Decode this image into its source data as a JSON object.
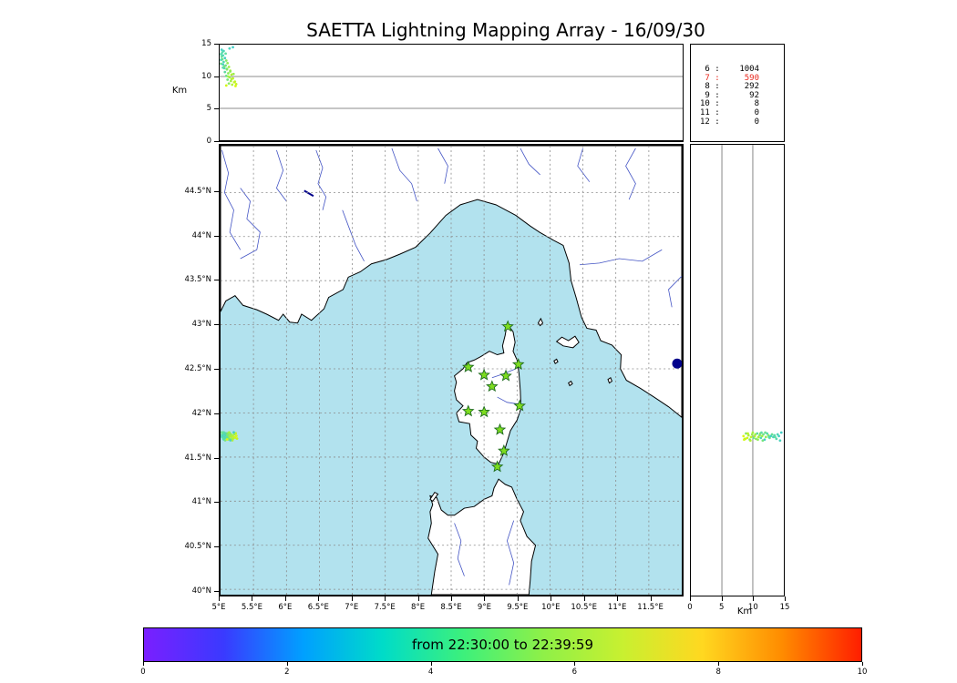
{
  "chart_data": {
    "type": "scatter",
    "title": "SAETTA Lightning Mapping Array - 16/09/30",
    "alt_axis": {
      "min": 0,
      "max": 15,
      "ticks": [
        0,
        5,
        10,
        15
      ],
      "label": "Km",
      "refline_km": [
        5,
        10
      ]
    },
    "map": {
      "lon_range": [
        5.0,
        12.0
      ],
      "lat_range": [
        39.94,
        45.03
      ],
      "lon_tick_values": [
        5,
        5.5,
        6,
        6.5,
        7,
        7.5,
        8,
        8.5,
        9,
        9.5,
        10,
        10.5,
        11,
        11.5
      ],
      "lon_tick_labels": [
        "5°E",
        "5.5°E",
        "6°E",
        "6.5°E",
        "7°E",
        "7.5°E",
        "8°E",
        "8.5°E",
        "9°E",
        "9.5°E",
        "10°E",
        "10.5°E",
        "11°E",
        "11.5°E"
      ],
      "lat_tick_values": [
        44.5,
        44,
        43.5,
        43,
        42.5,
        42,
        41.5,
        41,
        40.5,
        40
      ],
      "lat_tick_labels": [
        "44.5°N",
        "44°N",
        "43.5°N",
        "43°N",
        "42.5°N",
        "42°N",
        "41.5°N",
        "41°N",
        "40.5°N",
        "40°N"
      ],
      "sea_color": "#b2e2ee",
      "land_color": "#ffffff",
      "coast_color": "#000000",
      "river_color": "#4253c4",
      "grid_color": "#8a8a8a",
      "lake_color": "#00008b"
    },
    "source_counts": {
      "rows": [
        [
          "6",
          "1004"
        ],
        [
          "7",
          "590"
        ],
        [
          "8",
          "292"
        ],
        [
          "9",
          "92"
        ],
        [
          "10",
          "8"
        ],
        [
          "11",
          "0"
        ],
        [
          "12",
          "0"
        ]
      ],
      "highlight_index": 1,
      "highlight_color": "#e8281e"
    },
    "station_style": {
      "fill": "#7ddc1f",
      "edge": "#1e6b1e"
    },
    "stations": [
      [
        9.36,
        42.98
      ],
      [
        8.76,
        42.52
      ],
      [
        9.0,
        42.43
      ],
      [
        9.33,
        42.42
      ],
      [
        9.52,
        42.55
      ],
      [
        9.12,
        42.3
      ],
      [
        9.54,
        42.08
      ],
      [
        8.76,
        42.02
      ],
      [
        9.0,
        42.01
      ],
      [
        9.24,
        41.81
      ],
      [
        9.3,
        41.57
      ],
      [
        9.2,
        41.39
      ]
    ],
    "lightning_points": [
      [
        5.02,
        41.75,
        13.5,
        "#58dcaa"
      ],
      [
        5.05,
        41.73,
        13.3,
        "#4cd4b8"
      ],
      [
        5.03,
        41.76,
        13.1,
        "#68e094"
      ],
      [
        5.08,
        41.74,
        12.9,
        "#44d0c0"
      ],
      [
        5.04,
        41.72,
        12.7,
        "#74e480"
      ],
      [
        5.1,
        41.75,
        12.5,
        "#86e868"
      ],
      [
        5.06,
        41.77,
        12.3,
        "#54d8b0"
      ],
      [
        5.12,
        41.73,
        12.1,
        "#92ec54"
      ],
      [
        5.05,
        41.7,
        11.9,
        "#40ccc8"
      ],
      [
        5.09,
        41.76,
        11.7,
        "#6ce08c"
      ],
      [
        5.14,
        41.74,
        11.5,
        "#9eee48"
      ],
      [
        5.07,
        41.72,
        11.3,
        "#50d6b4"
      ],
      [
        5.11,
        41.75,
        11.1,
        "#80e670"
      ],
      [
        5.16,
        41.73,
        10.9,
        "#aaf03c"
      ],
      [
        5.08,
        41.77,
        10.7,
        "#5eda9e"
      ],
      [
        5.13,
        41.71,
        10.5,
        "#8cea5c"
      ],
      [
        5.18,
        41.74,
        10.3,
        "#b6f230"
      ],
      [
        5.1,
        41.72,
        10.1,
        "#68e288"
      ],
      [
        5.15,
        41.76,
        9.9,
        "#98ec50"
      ],
      [
        5.2,
        41.73,
        9.7,
        "#c2f428"
      ],
      [
        5.12,
        41.7,
        9.5,
        "#76e478"
      ],
      [
        5.17,
        41.75,
        9.3,
        "#a4f044"
      ],
      [
        5.22,
        41.72,
        9.1,
        "#cef61c"
      ],
      [
        5.14,
        41.77,
        8.9,
        "#84e866"
      ],
      [
        5.19,
        41.71,
        8.7,
        "#b0f23a"
      ],
      [
        5.24,
        41.74,
        8.5,
        "#daf810"
      ],
      [
        5.03,
        41.74,
        14.2,
        "#46d2c2"
      ],
      [
        5.06,
        41.76,
        14.0,
        "#50d6b6"
      ],
      [
        5.04,
        41.71,
        13.8,
        "#5adcac"
      ],
      [
        5.09,
        41.73,
        13.6,
        "#64dea0"
      ],
      [
        5.02,
        41.78,
        12.0,
        "#6ee28e"
      ],
      [
        5.07,
        41.69,
        11.6,
        "#78e47c"
      ],
      [
        5.11,
        41.77,
        11.2,
        "#82e86a"
      ],
      [
        5.16,
        41.7,
        10.8,
        "#8eec58"
      ],
      [
        5.21,
        41.76,
        10.4,
        "#9aee4c"
      ],
      [
        5.13,
        41.78,
        10.0,
        "#a6f040"
      ],
      [
        5.18,
        41.69,
        9.6,
        "#b2f234"
      ],
      [
        5.23,
        41.77,
        9.2,
        "#bef428"
      ],
      [
        5.02,
        41.73,
        12.6,
        "#52d8b4"
      ],
      [
        5.05,
        41.78,
        11.4,
        "#5edea8"
      ],
      [
        5.25,
        41.71,
        8.8,
        "#c6f620"
      ],
      [
        5.2,
        41.78,
        14.6,
        "#42cec6"
      ],
      [
        5.15,
        41.69,
        14.4,
        "#4ad2bc"
      ],
      [
        5.1,
        41.7,
        8.6,
        "#d4f814"
      ]
    ],
    "lakes": {
      "bolsena": [
        11.93,
        42.56,
        5.5
      ],
      "serre_poncon": [
        [
          6.27,
          44.52
        ],
        [
          6.41,
          44.46
        ]
      ]
    },
    "geo": {
      "mainland": [
        [
          5.0,
          43.15
        ],
        [
          5.08,
          43.27
        ],
        [
          5.22,
          43.33
        ],
        [
          5.34,
          43.22
        ],
        [
          5.55,
          43.17
        ],
        [
          5.7,
          43.12
        ],
        [
          5.88,
          43.05
        ],
        [
          5.95,
          43.12
        ],
        [
          6.05,
          43.03
        ],
        [
          6.17,
          43.02
        ],
        [
          6.23,
          43.12
        ],
        [
          6.38,
          43.05
        ],
        [
          6.57,
          43.18
        ],
        [
          6.64,
          43.31
        ],
        [
          6.86,
          43.4
        ],
        [
          6.94,
          43.54
        ],
        [
          7.12,
          43.6
        ],
        [
          7.29,
          43.69
        ],
        [
          7.52,
          43.74
        ],
        [
          7.72,
          43.8
        ],
        [
          7.96,
          43.88
        ],
        [
          8.18,
          44.04
        ],
        [
          8.42,
          44.24
        ],
        [
          8.64,
          44.36
        ],
        [
          8.9,
          44.42
        ],
        [
          9.18,
          44.36
        ],
        [
          9.48,
          44.24
        ],
        [
          9.7,
          44.12
        ],
        [
          9.84,
          44.05
        ],
        [
          10.05,
          43.96
        ],
        [
          10.2,
          43.9
        ],
        [
          10.29,
          43.7
        ],
        [
          10.32,
          43.5
        ],
        [
          10.4,
          43.3
        ],
        [
          10.48,
          43.08
        ],
        [
          10.56,
          42.96
        ],
        [
          10.7,
          42.94
        ],
        [
          10.77,
          42.82
        ],
        [
          10.94,
          42.77
        ],
        [
          11.08,
          42.66
        ],
        [
          11.07,
          42.5
        ],
        [
          11.16,
          42.37
        ],
        [
          11.37,
          42.28
        ],
        [
          11.58,
          42.18
        ],
        [
          11.8,
          42.07
        ],
        [
          12.0,
          41.95
        ],
        [
          12.0,
          45.03
        ],
        [
          5.0,
          45.03
        ]
      ],
      "corsica": [
        [
          9.35,
          43.01
        ],
        [
          9.44,
          42.92
        ],
        [
          9.47,
          42.8
        ],
        [
          9.44,
          42.7
        ],
        [
          9.5,
          42.6
        ],
        [
          9.53,
          42.45
        ],
        [
          9.55,
          42.25
        ],
        [
          9.56,
          42.05
        ],
        [
          9.5,
          41.92
        ],
        [
          9.4,
          41.8
        ],
        [
          9.34,
          41.65
        ],
        [
          9.3,
          41.55
        ],
        [
          9.22,
          41.42
        ],
        [
          9.1,
          41.44
        ],
        [
          9.0,
          41.5
        ],
        [
          8.88,
          41.6
        ],
        [
          8.9,
          41.68
        ],
        [
          8.8,
          41.75
        ],
        [
          8.78,
          41.88
        ],
        [
          8.62,
          41.9
        ],
        [
          8.58,
          42.0
        ],
        [
          8.68,
          42.08
        ],
        [
          8.58,
          42.15
        ],
        [
          8.55,
          42.25
        ],
        [
          8.58,
          42.35
        ],
        [
          8.55,
          42.42
        ],
        [
          8.68,
          42.5
        ],
        [
          8.74,
          42.57
        ],
        [
          8.85,
          42.6
        ],
        [
          8.95,
          42.64
        ],
        [
          9.08,
          42.7
        ],
        [
          9.2,
          42.66
        ],
        [
          9.3,
          42.68
        ],
        [
          9.28,
          42.76
        ],
        [
          9.32,
          42.88
        ]
      ],
      "sardinia": [
        [
          8.2,
          39.94
        ],
        [
          8.25,
          40.2
        ],
        [
          8.3,
          40.4
        ],
        [
          8.15,
          40.58
        ],
        [
          8.2,
          40.75
        ],
        [
          8.18,
          40.88
        ],
        [
          8.22,
          40.96
        ],
        [
          8.18,
          41.06
        ],
        [
          8.28,
          41.04
        ],
        [
          8.35,
          40.9
        ],
        [
          8.45,
          40.84
        ],
        [
          8.55,
          40.84
        ],
        [
          8.7,
          40.92
        ],
        [
          8.85,
          40.94
        ],
        [
          9.0,
          41.02
        ],
        [
          9.12,
          41.06
        ],
        [
          9.15,
          41.15
        ],
        [
          9.22,
          41.25
        ],
        [
          9.32,
          41.19
        ],
        [
          9.42,
          41.16
        ],
        [
          9.5,
          41.02
        ],
        [
          9.55,
          40.95
        ],
        [
          9.6,
          40.88
        ],
        [
          9.55,
          40.78
        ],
        [
          9.65,
          40.6
        ],
        [
          9.78,
          40.5
        ],
        [
          9.72,
          40.32
        ],
        [
          9.7,
          40.1
        ],
        [
          9.68,
          39.94
        ]
      ],
      "islands": [
        [
          [
            10.1,
            42.81
          ],
          [
            10.18,
            42.86
          ],
          [
            10.28,
            42.82
          ],
          [
            10.38,
            42.87
          ],
          [
            10.44,
            42.8
          ],
          [
            10.35,
            42.74
          ],
          [
            10.2,
            42.76
          ]
        ],
        [
          [
            9.82,
            43.02
          ],
          [
            9.86,
            43.07
          ],
          [
            9.89,
            43.02
          ],
          [
            9.85,
            42.99
          ]
        ],
        [
          [
            8.18,
            41.02
          ],
          [
            8.25,
            41.1
          ],
          [
            8.3,
            41.08
          ],
          [
            8.22,
            41.0
          ]
        ],
        [
          [
            10.06,
            42.59
          ],
          [
            10.1,
            42.61
          ],
          [
            10.12,
            42.58
          ],
          [
            10.08,
            42.56
          ]
        ],
        [
          [
            10.28,
            42.34
          ],
          [
            10.32,
            42.36
          ],
          [
            10.34,
            42.33
          ],
          [
            10.3,
            42.31
          ]
        ],
        [
          [
            10.88,
            42.38
          ],
          [
            10.92,
            42.4
          ],
          [
            10.94,
            42.36
          ],
          [
            10.9,
            42.34
          ]
        ]
      ],
      "rivers": [
        [
          [
            5.02,
            44.98
          ],
          [
            5.12,
            44.72
          ],
          [
            5.06,
            44.5
          ],
          [
            5.2,
            44.3
          ],
          [
            5.14,
            44.05
          ],
          [
            5.3,
            43.85
          ]
        ],
        [
          [
            5.3,
            44.55
          ],
          [
            5.45,
            44.4
          ],
          [
            5.4,
            44.2
          ],
          [
            5.6,
            44.05
          ],
          [
            5.55,
            43.85
          ],
          [
            5.3,
            43.75
          ]
        ],
        [
          [
            5.85,
            44.98
          ],
          [
            5.95,
            44.75
          ],
          [
            5.85,
            44.55
          ],
          [
            6.0,
            44.4
          ]
        ],
        [
          [
            6.85,
            44.3
          ],
          [
            6.95,
            44.1
          ],
          [
            7.05,
            43.9
          ],
          [
            7.18,
            43.72
          ]
        ],
        [
          [
            6.45,
            44.98
          ],
          [
            6.55,
            44.78
          ],
          [
            6.48,
            44.6
          ],
          [
            6.6,
            44.45
          ],
          [
            6.55,
            44.3
          ]
        ],
        [
          [
            7.6,
            45.0
          ],
          [
            7.72,
            44.75
          ],
          [
            7.9,
            44.6
          ],
          [
            7.98,
            44.4
          ]
        ],
        [
          [
            8.3,
            45.0
          ],
          [
            8.45,
            44.8
          ],
          [
            8.4,
            44.6
          ]
        ],
        [
          [
            9.55,
            45.0
          ],
          [
            9.68,
            44.82
          ],
          [
            9.85,
            44.7
          ]
        ],
        [
          [
            10.5,
            45.0
          ],
          [
            10.42,
            44.8
          ],
          [
            10.6,
            44.62
          ]
        ],
        [
          [
            11.3,
            45.0
          ],
          [
            11.15,
            44.8
          ],
          [
            11.3,
            44.6
          ],
          [
            11.2,
            44.42
          ]
        ],
        [
          [
            11.7,
            43.85
          ],
          [
            11.4,
            43.72
          ],
          [
            11.05,
            43.75
          ],
          [
            10.75,
            43.7
          ],
          [
            10.45,
            43.68
          ]
        ],
        [
          [
            12.0,
            43.55
          ],
          [
            11.8,
            43.4
          ],
          [
            11.85,
            43.2
          ]
        ],
        [
          [
            9.48,
            42.5
          ],
          [
            9.28,
            42.44
          ],
          [
            9.12,
            42.4
          ]
        ],
        [
          [
            9.53,
            42.1
          ],
          [
            9.35,
            42.12
          ],
          [
            9.2,
            42.18
          ]
        ],
        [
          [
            9.45,
            40.78
          ],
          [
            9.35,
            40.55
          ],
          [
            9.45,
            40.3
          ],
          [
            9.38,
            40.05
          ]
        ],
        [
          [
            8.55,
            40.75
          ],
          [
            8.65,
            40.55
          ],
          [
            8.6,
            40.35
          ],
          [
            8.7,
            40.15
          ]
        ]
      ]
    },
    "colorbar": {
      "label": "from 22:30:00 to 22:39:59",
      "range": [
        0,
        10
      ],
      "tick_values": [
        0,
        2,
        4,
        6,
        8,
        10
      ],
      "tick_labels": [
        "0",
        "2",
        "4",
        "6",
        "8",
        "10"
      ],
      "colors": [
        "#7a1fff",
        "#3a3aff",
        "#00a0ff",
        "#00dcc8",
        "#3cf07c",
        "#8ef048",
        "#c8f030",
        "#ffd820",
        "#ff8c00",
        "#ff1e00"
      ]
    }
  }
}
